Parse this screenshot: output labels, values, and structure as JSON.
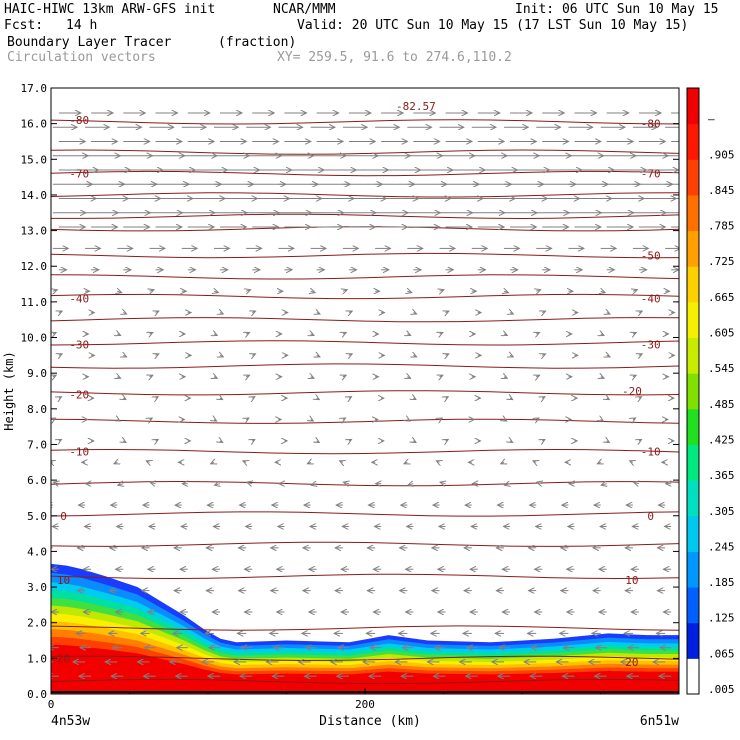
{
  "header": {
    "model": "HAIC-HIWC 13km ARW-GFS init",
    "org": "NCAR/MMM",
    "init": "Init: 06 UTC Sun 10 May 15",
    "fcst_label": "Fcst:",
    "fcst_value": "14 h",
    "valid": "Valid: 20 UTC Sun 10 May 15 (17 LST Sun 10 May 15)",
    "field": "Boundary Layer Tracer",
    "field_units": "(fraction)",
    "vectors": "Circulation vectors",
    "xy": "XY= 259.5, 91.6 to 274.6,110.2"
  },
  "colors": {
    "contour": "#8b1a1a",
    "vector": "#808080",
    "colorbar": [
      "#ffffff",
      "#0000e0",
      "#0050ff",
      "#00a0ff",
      "#00d8e0",
      "#00e890",
      "#10e030",
      "#80e000",
      "#c0e800",
      "#f0f000",
      "#ffd000",
      "#ffa000",
      "#ff7000",
      "#ff3000",
      "#f00000"
    ]
  },
  "chart_data": {
    "type": "cross-section",
    "ylabel": "Height (km)",
    "xlabel": "Distance (km)",
    "x_start_label": "4n53w",
    "x_end_label": "6n51w",
    "ylim": [
      0,
      17
    ],
    "yticks": [
      "0.0",
      "1.0",
      "2.0",
      "3.0",
      "4.0",
      "5.0",
      "6.0",
      "7.0",
      "8.0",
      "9.0",
      "10.0",
      "11.0",
      "12.0",
      "13.0",
      "14.0",
      "15.0",
      "16.0",
      "17.0"
    ],
    "xlim": [
      0,
      400
    ],
    "xticks": [
      {
        "value": 0,
        "label": "0"
      },
      {
        "value": 200,
        "label": "200"
      }
    ],
    "colorbar_labels": [
      ".005",
      ".065",
      ".125",
      ".185",
      ".245",
      ".305",
      ".365",
      ".425",
      ".485",
      ".545",
      ".605",
      ".665",
      ".725",
      ".785",
      ".845",
      ".905",
      "–"
    ],
    "max_label": "-82.57",
    "contour_labels": [
      {
        "label": "-80",
        "x": 18,
        "y": 16.1
      },
      {
        "label": "-80",
        "x": 382,
        "y": 16.0
      },
      {
        "label": "-70",
        "x": 18,
        "y": 14.6
      },
      {
        "label": "-70",
        "x": 382,
        "y": 14.6
      },
      {
        "label": "-50",
        "x": 382,
        "y": 12.3
      },
      {
        "label": "-40",
        "x": 18,
        "y": 11.1
      },
      {
        "label": "-40",
        "x": 382,
        "y": 11.1
      },
      {
        "label": "-30",
        "x": 18,
        "y": 9.8
      },
      {
        "label": "-30",
        "x": 382,
        "y": 9.8
      },
      {
        "label": "-20",
        "x": 18,
        "y": 8.4
      },
      {
        "label": "-20",
        "x": 370,
        "y": 8.5
      },
      {
        "label": "-10",
        "x": 18,
        "y": 6.8
      },
      {
        "label": "-10",
        "x": 382,
        "y": 6.8
      },
      {
        "label": "0",
        "x": 8,
        "y": 5.0
      },
      {
        "label": "0",
        "x": 382,
        "y": 5.0
      },
      {
        "label": "10",
        "x": 8,
        "y": 3.2
      },
      {
        "label": "10",
        "x": 370,
        "y": 3.2
      },
      {
        "label": "20",
        "x": 8,
        "y": 1.0
      },
      {
        "label": "20",
        "x": 370,
        "y": 0.9
      }
    ],
    "contour_levels_km": [
      0.35,
      1.0,
      1.85,
      3.3,
      4.2,
      5.05,
      5.9,
      6.8,
      7.65,
      8.45,
      9.2,
      9.85,
      10.5,
      11.15,
      11.7,
      12.3,
      13.05,
      13.4,
      14.0,
      14.6,
      15.2,
      16.05
    ],
    "tracer_top_km": [
      [
        0,
        3.65
      ],
      [
        10,
        3.6
      ],
      [
        20,
        3.5
      ],
      [
        35,
        3.3
      ],
      [
        55,
        3.0
      ],
      [
        70,
        2.6
      ],
      [
        85,
        2.2
      ],
      [
        98,
        1.8
      ],
      [
        108,
        1.55
      ],
      [
        118,
        1.45
      ],
      [
        150,
        1.5
      ],
      [
        190,
        1.45
      ],
      [
        215,
        1.65
      ],
      [
        240,
        1.5
      ],
      [
        280,
        1.45
      ],
      [
        320,
        1.55
      ],
      [
        355,
        1.7
      ],
      [
        380,
        1.65
      ],
      [
        400,
        1.65
      ]
    ],
    "vector_rows": [
      {
        "z": 16.3,
        "u": 1.0
      },
      {
        "z": 15.9,
        "u": 1.1
      },
      {
        "z": 15.5,
        "u": 1.2
      },
      {
        "z": 15.1,
        "u": 1.6
      },
      {
        "z": 14.7,
        "u": 1.8
      },
      {
        "z": 14.3,
        "u": 1.8
      },
      {
        "z": 13.9,
        "u": 1.7
      },
      {
        "z": 13.5,
        "u": 1.5
      },
      {
        "z": 13.1,
        "u": 1.2
      },
      {
        "z": 12.5,
        "u": 0.7
      },
      {
        "z": 11.9,
        "u": 0.35
      },
      {
        "z": 11.3,
        "u": 0.2
      },
      {
        "z": 10.7,
        "u": 0.15
      },
      {
        "z": 10.1,
        "u": 0.15
      },
      {
        "z": 9.5,
        "u": 0.15
      },
      {
        "z": 8.9,
        "u": 0.15
      },
      {
        "z": 8.3,
        "u": 0.12
      },
      {
        "z": 7.7,
        "u": 0.12
      },
      {
        "z": 7.1,
        "u": 0.12
      },
      {
        "z": 6.5,
        "u": -0.15
      },
      {
        "z": 5.9,
        "u": -0.25
      },
      {
        "z": 5.3,
        "u": -0.3
      },
      {
        "z": 4.7,
        "u": -0.3
      },
      {
        "z": 4.1,
        "u": -0.35
      },
      {
        "z": 3.5,
        "u": -0.35
      },
      {
        "z": 2.9,
        "u": -0.35
      },
      {
        "z": 2.3,
        "u": -0.35
      },
      {
        "z": 1.7,
        "u": -0.4
      },
      {
        "z": 1.3,
        "u": -0.5
      },
      {
        "z": 0.9,
        "u": -0.55
      },
      {
        "z": 0.5,
        "u": -0.55
      }
    ]
  }
}
